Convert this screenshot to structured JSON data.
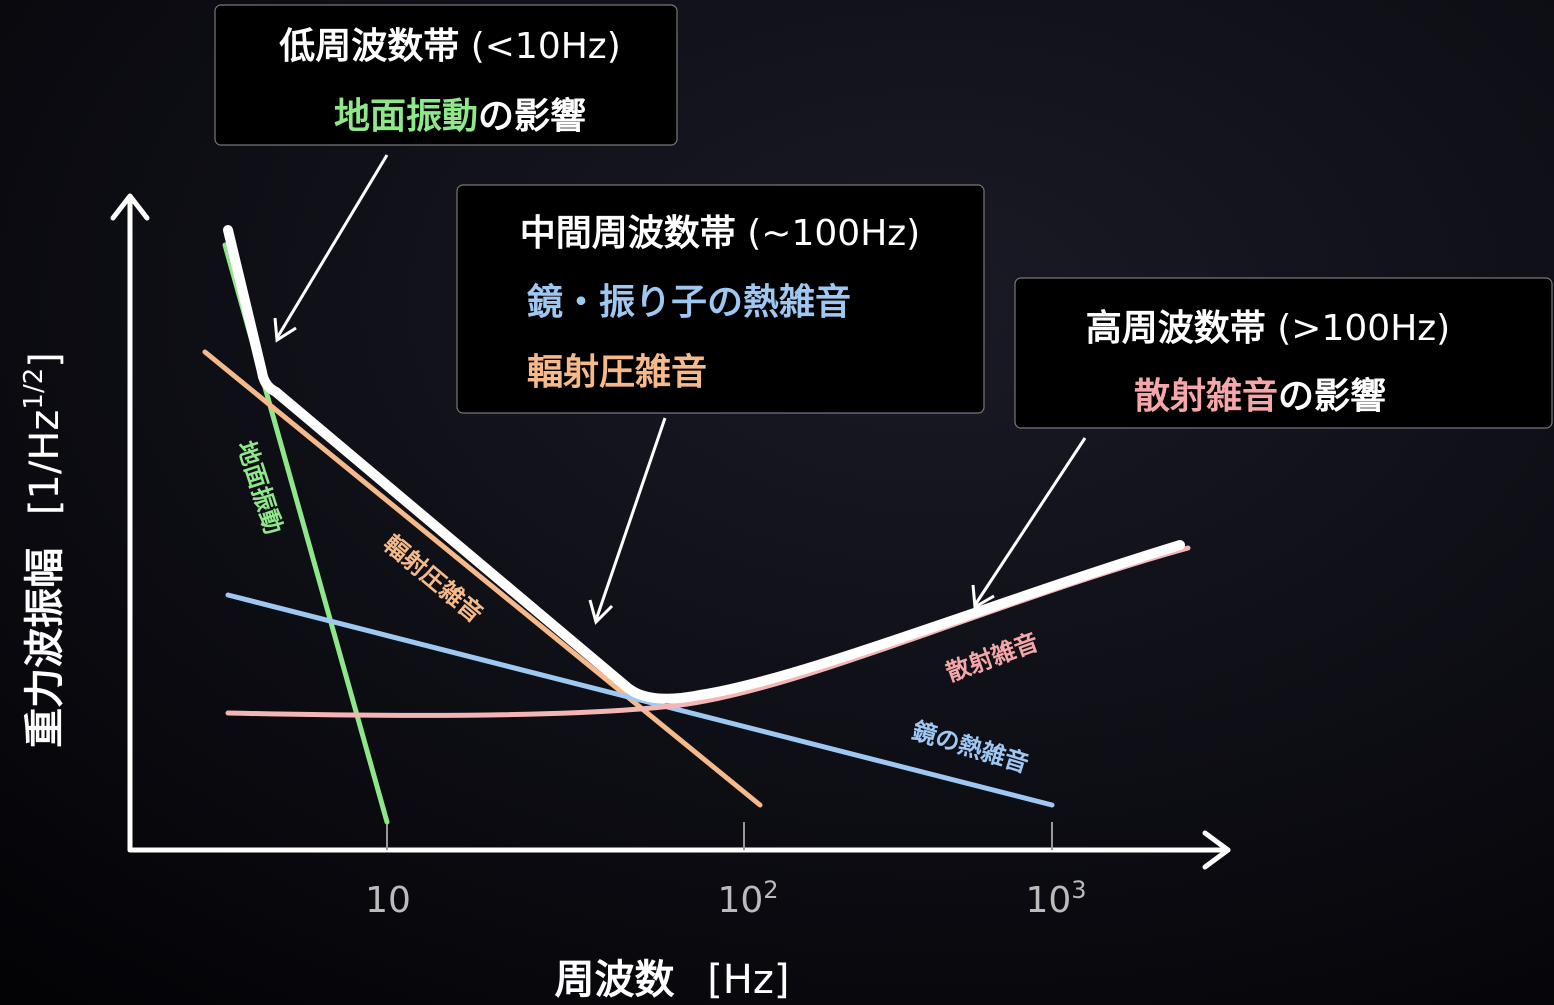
{
  "boxes": [
    {
      "heading": "低周波数帯",
      "range": "(<10Hz)",
      "lines": [
        {
          "highlight": "地面振動",
          "suffix": "の影響"
        }
      ]
    },
    {
      "heading": "中間周波数帯",
      "range": "(~100Hz)",
      "lines": [
        {
          "highlight": "鏡・振り子の熱雑音"
        },
        {
          "highlight": "輻射圧雑音"
        }
      ]
    },
    {
      "heading": "高周波数帯",
      "range": "(>100Hz)",
      "lines": [
        {
          "highlight": "散射雑音",
          "suffix": "の影響"
        }
      ]
    }
  ],
  "curve_labels": {
    "seismic": "地面振動",
    "radiation": "輻射圧雑音",
    "shot": "散射雑音",
    "thermal": "鏡の熱雑音"
  },
  "y_axis": {
    "label": "重力波振幅",
    "unit_open": "[1/Hz",
    "unit_exp": "1/2",
    "unit_close": "]"
  },
  "x_axis": {
    "label": "周波数",
    "unit": "[Hz]",
    "ticks": [
      {
        "base": "10"
      },
      {
        "base": "10",
        "exp": "2"
      },
      {
        "base": "10",
        "exp": "3"
      }
    ]
  }
}
